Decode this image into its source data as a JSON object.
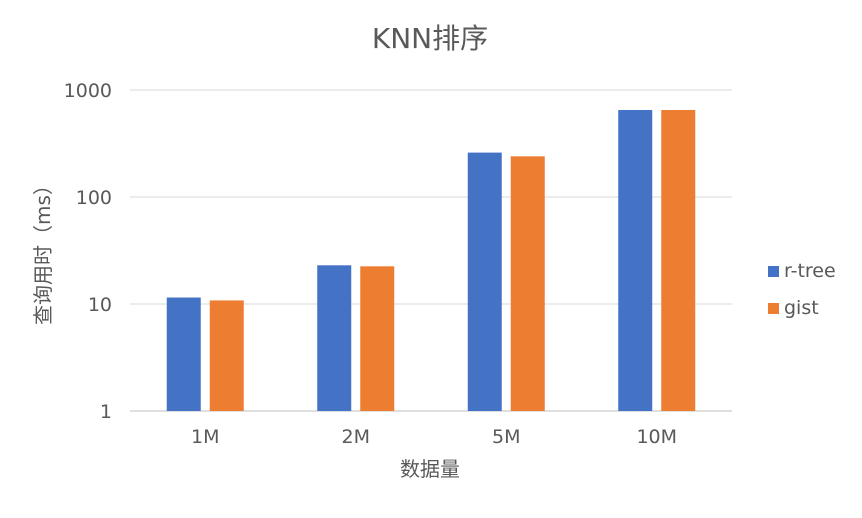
{
  "chart_data": {
    "type": "bar",
    "title": "KNN排序",
    "xlabel": "数据量",
    "ylabel": "查询用时（ms）",
    "y_scale": "log",
    "ylim": [
      1,
      1000
    ],
    "yticks": [
      "1",
      "10",
      "100",
      "1000"
    ],
    "grid": true,
    "legend_position": "right",
    "categories": [
      "1M",
      "2M",
      "5M",
      "10M"
    ],
    "series": [
      {
        "name": "r-tree",
        "color": "#4472C4",
        "values": [
          11.5,
          23,
          260,
          650
        ]
      },
      {
        "name": "gist",
        "color": "#ED7D31",
        "values": [
          10.8,
          22.5,
          240,
          650
        ]
      }
    ]
  }
}
